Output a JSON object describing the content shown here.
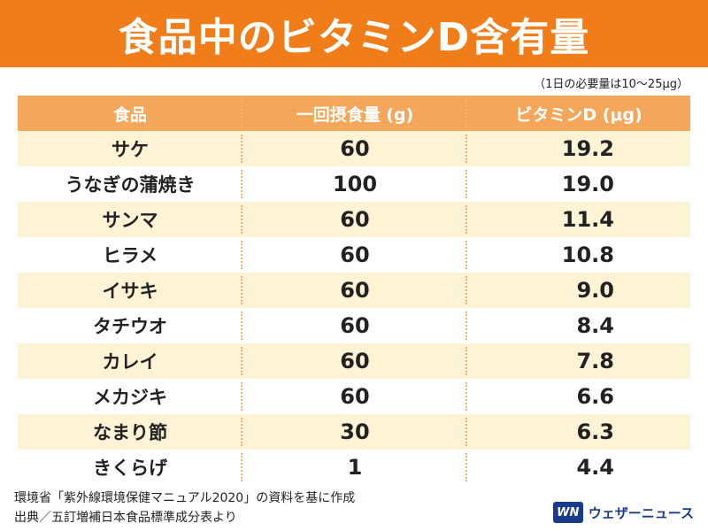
{
  "title": "食品中のビタミンD含有量",
  "note": "（1日の必要量は10～25μg）",
  "table": {
    "headers": [
      "食品",
      "一回摂食量 (g)",
      "ビタミンD (μg)"
    ],
    "rows": [
      {
        "food": "サケ",
        "amount": "60",
        "vitd": "19.2"
      },
      {
        "food": "うなぎの蒲焼き",
        "amount": "100",
        "vitd": "19.0"
      },
      {
        "food": "サンマ",
        "amount": "60",
        "vitd": "11.4"
      },
      {
        "food": "ヒラメ",
        "amount": "60",
        "vitd": "10.8"
      },
      {
        "food": "イサキ",
        "amount": "60",
        "vitd": "9.0"
      },
      {
        "food": "タチウオ",
        "amount": "60",
        "vitd": "8.4"
      },
      {
        "food": "カレイ",
        "amount": "60",
        "vitd": "7.8"
      },
      {
        "food": "メカジキ",
        "amount": "60",
        "vitd": "6.6"
      },
      {
        "food": "なまり節",
        "amount": "30",
        "vitd": "6.3"
      },
      {
        "food": "きくらげ",
        "amount": "1",
        "vitd": "4.4"
      }
    ]
  },
  "footer": {
    "line1": "環境省「紫外線環境保健マニュアル2020」の資料を基に作成",
    "line2": "出典／五訂増補日本食品標準成分表より"
  },
  "logo": {
    "mark": "WN",
    "text": "ウェザーニュース"
  },
  "colors": {
    "title_bg": "#f07d19",
    "header_bg": "#f4a75a",
    "stripe": "#fff3d6",
    "logo": "#1a3a8a"
  }
}
